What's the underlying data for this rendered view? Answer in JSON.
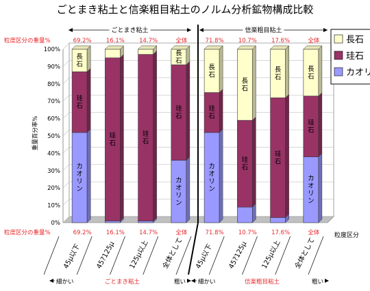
{
  "chart_data": {
    "type": "bar",
    "stacked": true,
    "title": "ごとまき粘土と信楽粗目粘土のノルム分析鉱物構成比較",
    "ylabel": "重量百分率%",
    "xlabel": "粒度区分",
    "ylim": [
      0,
      100
    ],
    "yticks": [
      "0%",
      "10%",
      "20%",
      "30%",
      "40%",
      "50%",
      "60%",
      "70%",
      "80%",
      "90%",
      "100%"
    ],
    "weight_row_label": "粒度区分の重量%",
    "groups": [
      {
        "name": "ごとまき粘土",
        "fine_label": "細かい",
        "coarse_label": "粗い"
      },
      {
        "name": "信楽粗目粘土",
        "fine_label": "細かい",
        "coarse_label": "粗い"
      }
    ],
    "categories": [
      "45μ以下",
      "45?125μ",
      "125μ以上",
      "全体として",
      "45μ以下",
      "45?125μ",
      "125μ以上",
      "全体として"
    ],
    "weight_percent": [
      "69.2%",
      "16.1%",
      "14.7%",
      "全体",
      "71.8%",
      "10.7%",
      "17.6%",
      "全体"
    ],
    "series": [
      {
        "name": "カオリン",
        "color": "#9999ff",
        "values": [
          52,
          1,
          1,
          36,
          52,
          9,
          3,
          38
        ]
      },
      {
        "name": "珪石",
        "color": "#993366",
        "values": [
          35,
          94,
          96,
          55,
          23,
          50,
          69,
          35
        ]
      },
      {
        "name": "長石",
        "color": "#ffffcc",
        "values": [
          13,
          5,
          3,
          9,
          25,
          41,
          28,
          27
        ]
      }
    ],
    "segment_labels": [
      [
        "カオリン",
        "",
        "",
        "カオリン",
        "カオリン",
        "",
        "",
        "カオリン"
      ],
      [
        "珪石",
        "珪石",
        "珪石",
        "珪石",
        "珪石",
        "珪石",
        "珪石",
        "珪石"
      ],
      [
        "長石",
        "",
        "",
        "長石",
        "長石",
        "長石",
        "長石",
        "長石"
      ]
    ],
    "legend": {
      "placement": "top-right",
      "entries": [
        "長石",
        "珪石",
        "カオリ"
      ]
    },
    "grid": true
  }
}
